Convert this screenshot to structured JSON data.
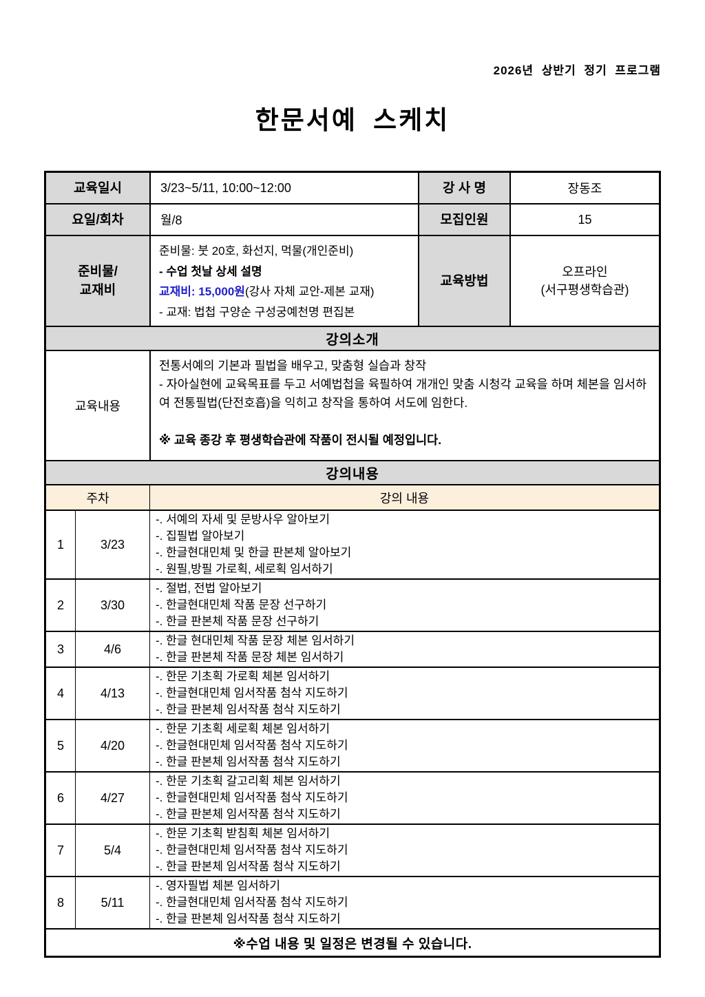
{
  "page": {
    "top_right": "2026년 상반기 정기 프로그램",
    "title": "한문서예 스케치"
  },
  "colors": {
    "accent_blue": "#2222cc",
    "header_gray": "#d9d9d9",
    "subheader_cream": "#fcefdc"
  },
  "info": {
    "rows": [
      {
        "label": "교육일시",
        "value": "3/23~5/11, 10:00~12:00",
        "label2": "강 사 명",
        "value2": "장동조"
      },
      {
        "label": "요일/회차",
        "value": "월/8",
        "label2": "모집인원",
        "value2": "15"
      }
    ],
    "materials": {
      "label_line1": "준비물/",
      "label_line2": "교재비",
      "line1": "준비물: 붓 20호, 화선지, 먹물(개인준비)",
      "line2": "- 수업 첫날 상세 설명",
      "line3_price": "교재비: 15,000원",
      "line3_note": "(강사 자체 교안-제본 교재)",
      "line4": "- 교재: 법첩 구양순 구성궁예천명 편집본",
      "method_label": "교육방법",
      "method_line1": "오프라인",
      "method_line2": "(서구평생학습관)"
    }
  },
  "intro": {
    "header": "강의소개",
    "label": "교육내용",
    "line1": "전통서예의 기본과 필법을 배우고, 맞춤형 실습과 창작",
    "line2": "- 자아실현에 교육목표를 두고 서예법첩을 육필하여 개개인 맞춤 시청각 교육을 하며 체본을 임서하여 전통필법(단전호흡)을 익히고 창작을 통하여 서도에 임한다.",
    "note": "※ 교육 종강 후 평생학습관에 작품이 전시될 예정입니다."
  },
  "schedule": {
    "header": "강의내용",
    "col1": "주차",
    "col2": "강의 내용",
    "rows": [
      {
        "num": "1",
        "date": "3/23",
        "lines": [
          "-. 서예의 자세 및 문방사우 알아보기",
          "-. 집필법 알아보기",
          "-. 한글현대민체 및 한글 판본체 알아보기",
          "-. 원필,방필 가로획, 세로획 임서하기"
        ]
      },
      {
        "num": "2",
        "date": "3/30",
        "lines": [
          "-. 절법, 전법 알아보기",
          "-. 한글현대민체 작품 문장 선구하기",
          "-. 한글 판본체 작품 문장 선구하기"
        ]
      },
      {
        "num": "3",
        "date": "4/6",
        "lines": [
          "-. 한글 현대민체 작품 문장 체본 임서하기",
          "-. 한글 판본체 작품 문장 체본 임서하기"
        ]
      },
      {
        "num": "4",
        "date": "4/13",
        "lines": [
          "-. 한문 기초획 가로획 체본 임서하기",
          "-. 한글현대민체 임서작품 첨삭 지도하기",
          "-. 한글 판본체 임서작품 첨삭 지도하기"
        ]
      },
      {
        "num": "5",
        "date": "4/20",
        "lines": [
          "-. 한문 기초획 세로획 체본 임서하기",
          "-. 한글현대민체 임서작품 첨삭 지도하기",
          "-. 한글 판본체 임서작품 첨삭 지도하기"
        ]
      },
      {
        "num": "6",
        "date": "4/27",
        "lines": [
          "-. 한문 기초획 갈고리획 체본 임서하기",
          "-. 한글현대민체 임서작품 첨삭 지도하기",
          "-. 한글 판본체 임서작품 첨삭 지도하기"
        ]
      },
      {
        "num": "7",
        "date": "5/4",
        "lines": [
          "-. 한문 기초획 받침획 체본 임서하기",
          "-. 한글현대민체 임서작품 첨삭 지도하기",
          "-. 한글 판본체 임서작품 첨삭 지도하기"
        ]
      },
      {
        "num": "8",
        "date": "5/11",
        "lines": [
          "-. 영자필법 체본 임서하기",
          "-. 한글현대민체 임서작품 첨삭 지도하기",
          "-. 한글 판본체 임서작품 첨삭 지도하기"
        ]
      }
    ],
    "footer": "※수업 내용 및 일정은 변경될 수 있습니다."
  }
}
